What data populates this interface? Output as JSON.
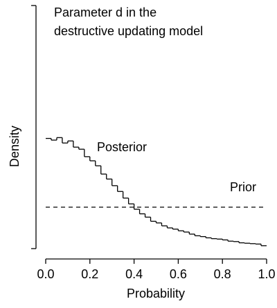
{
  "chart_data": {
    "type": "step",
    "title": [
      "Parameter d in the",
      "destructive updating model"
    ],
    "xlabel": "Probability",
    "ylabel": "Density",
    "xlim": [
      0,
      1
    ],
    "xticks": [
      {
        "value": 0,
        "label": "0.0"
      },
      0.2,
      0.4,
      0.6,
      0.8,
      {
        "value": 1,
        "label": "1.0"
      }
    ],
    "ylim": [
      0,
      5.87
    ],
    "series": [
      {
        "name": "Posterior",
        "color": "#000000",
        "dashed": false,
        "bins": [
          0,
          0.025,
          0.05,
          0.075,
          0.1,
          0.125,
          0.15,
          0.175,
          0.2,
          0.225,
          0.25,
          0.275,
          0.3,
          0.325,
          0.35,
          0.375,
          0.4,
          0.425,
          0.45,
          0.475,
          0.5,
          0.525,
          0.55,
          0.575,
          0.6,
          0.625,
          0.65,
          0.675,
          0.7,
          0.725,
          0.75,
          0.775,
          0.8,
          0.825,
          0.85,
          0.875,
          0.9,
          0.925,
          0.95,
          0.975,
          1
        ],
        "values": [
          2.66,
          2.62,
          2.68,
          2.55,
          2.6,
          2.45,
          2.4,
          2.22,
          2.12,
          2.0,
          1.8,
          1.68,
          1.52,
          1.38,
          1.22,
          1.08,
          0.95,
          0.84,
          0.76,
          0.66,
          0.62,
          0.55,
          0.5,
          0.47,
          0.43,
          0.4,
          0.35,
          0.31,
          0.29,
          0.26,
          0.24,
          0.23,
          0.21,
          0.18,
          0.17,
          0.14,
          0.13,
          0.12,
          0.11,
          0.07
        ]
      },
      {
        "name": "Prior",
        "color": "#000000",
        "dashed": true,
        "bins": [
          0,
          1
        ],
        "values": [
          1
        ]
      }
    ]
  }
}
